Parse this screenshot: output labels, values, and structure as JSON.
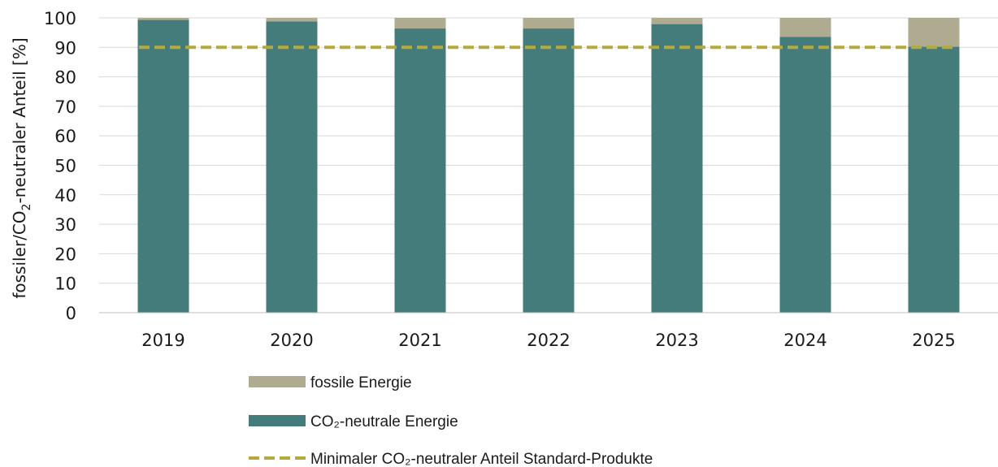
{
  "chart_data": {
    "type": "bar",
    "stacked": true,
    "categories": [
      "2019",
      "2020",
      "2021",
      "2022",
      "2023",
      "2024",
      "2025"
    ],
    "series": [
      {
        "name": "CO₂-neutrale Energie",
        "values": [
          99.3,
          98.8,
          96.4,
          96.4,
          97.9,
          93.6,
          90.2
        ],
        "color": "#437c7b"
      },
      {
        "name": "fossile Energie",
        "values": [
          0.7,
          1.2,
          3.6,
          3.6,
          2.1,
          6.4,
          9.8
        ],
        "color": "#afab91"
      }
    ],
    "reference_line": {
      "name": "Minimaler CO₂-neutraler Anteil Standard-Produkte",
      "value": 90,
      "color": "#b5a93c",
      "style": "dashed"
    },
    "ylabel": "fossiler/CO₂-neutraler Anteil [%]",
    "ylabel_parts": {
      "before": "fossiler/CO",
      "sub": "2",
      "after": "-neutraler Anteil [%]"
    },
    "ylim": [
      0,
      100
    ],
    "yticks": [
      0,
      10,
      20,
      30,
      40,
      50,
      60,
      70,
      80,
      90,
      100
    ],
    "grid": true,
    "legend_position": "bottom",
    "legend": [
      {
        "label": "fossile Energie",
        "kind": "box",
        "color": "#afab91"
      },
      {
        "label": "CO₂-neutrale Energie",
        "kind": "box",
        "color": "#437c7b"
      },
      {
        "label": "Minimaler CO₂-neutraler Anteil Standard-Produkte",
        "kind": "dash",
        "color": "#b5a93c"
      }
    ]
  }
}
